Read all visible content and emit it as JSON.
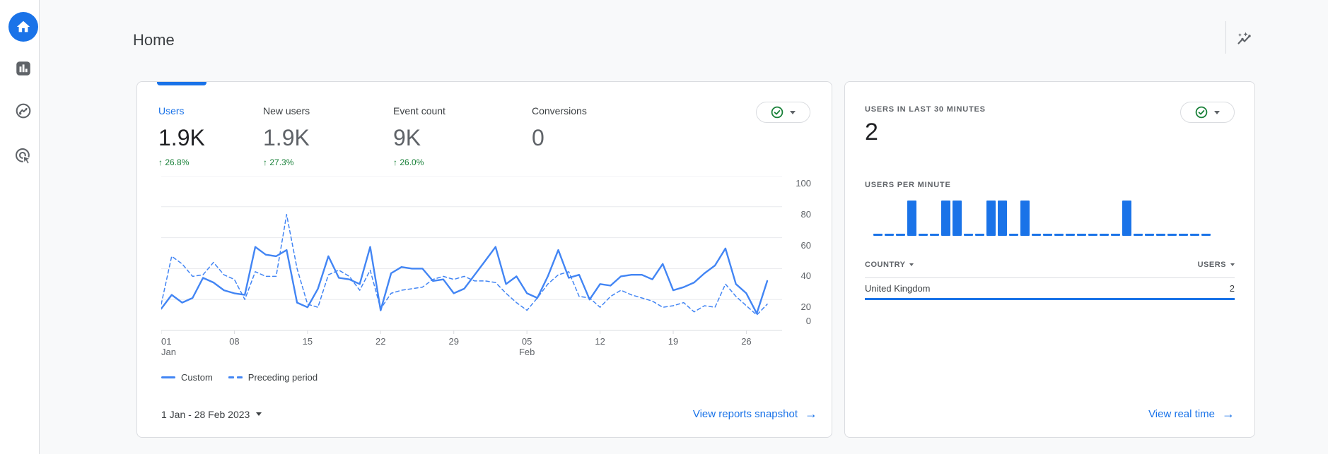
{
  "header": {
    "title": "Home"
  },
  "sidebar": {
    "items": [
      "home",
      "reports",
      "explore",
      "advertising"
    ]
  },
  "overview_card": {
    "metrics": [
      {
        "label": "Users",
        "value": "1.9K",
        "delta": "26.8%",
        "direction": "up",
        "selected": true
      },
      {
        "label": "New users",
        "value": "1.9K",
        "delta": "27.3%",
        "direction": "up",
        "selected": false
      },
      {
        "label": "Event count",
        "value": "9K",
        "delta": "26.0%",
        "direction": "up",
        "selected": false
      },
      {
        "label": "Conversions",
        "value": "0",
        "delta": null,
        "selected": false
      }
    ],
    "legend": [
      {
        "label": "Custom",
        "style": "solid"
      },
      {
        "label": "Preceding period",
        "style": "dashed"
      }
    ],
    "date_range": "1 Jan - 28 Feb 2023",
    "link_label": "View reports snapshot"
  },
  "realtime_card": {
    "title": "USERS IN LAST 30 MINUTES",
    "value": "2",
    "chart_label": "USERS PER MINUTE",
    "table": {
      "columns": [
        "COUNTRY",
        "USERS"
      ],
      "rows": [
        {
          "dimension": "United Kingdom",
          "value": "2"
        }
      ]
    },
    "link_label": "View real time"
  },
  "chart_data": [
    {
      "type": "line",
      "title": "Users over time (1 Jan - 28 Feb 2023, daily)",
      "ylim": [
        0,
        100
      ],
      "yticks": [
        0,
        20,
        40,
        60,
        80,
        100
      ],
      "grid": true,
      "legend_position": "bottom",
      "x_start": "1 Jan 2023",
      "x_end": "28 Feb 2023",
      "x_tick_days": [
        1,
        8,
        15,
        22,
        29,
        36,
        43,
        50,
        57
      ],
      "x_tick_labels": [
        {
          "day": "01",
          "month": "Jan"
        },
        {
          "day": "08",
          "month": ""
        },
        {
          "day": "15",
          "month": ""
        },
        {
          "day": "22",
          "month": ""
        },
        {
          "day": "29",
          "month": ""
        },
        {
          "day": "05",
          "month": "Feb"
        },
        {
          "day": "12",
          "month": ""
        },
        {
          "day": "19",
          "month": ""
        },
        {
          "day": "26",
          "month": ""
        }
      ],
      "series": [
        {
          "name": "Custom",
          "style": "solid",
          "values": [
            14,
            23,
            18,
            21,
            34,
            31,
            26,
            24,
            23,
            54,
            49,
            48,
            52,
            18,
            15,
            27,
            48,
            34,
            33,
            30,
            54,
            13,
            37,
            41,
            40,
            40,
            32,
            33,
            24,
            27,
            36,
            45,
            54,
            30,
            35,
            24,
            21,
            35,
            52,
            34,
            36,
            20,
            30,
            29,
            35,
            36,
            36,
            33,
            43,
            26,
            28,
            31,
            37,
            42,
            53,
            30,
            24,
            11,
            32
          ]
        },
        {
          "name": "Preceding period",
          "style": "dashed",
          "values": [
            17,
            48,
            43,
            35,
            36,
            44,
            36,
            33,
            20,
            38,
            35,
            35,
            75,
            40,
            17,
            15,
            36,
            39,
            35,
            26,
            39,
            14,
            24,
            26,
            27,
            28,
            33,
            35,
            33,
            35,
            32,
            32,
            31,
            24,
            18,
            13,
            21,
            30,
            36,
            38,
            22,
            21,
            15,
            22,
            26,
            23,
            21,
            19,
            15,
            16,
            18,
            12,
            16,
            15,
            30,
            22,
            16,
            10,
            17
          ]
        }
      ]
    },
    {
      "type": "bar",
      "title": "Users per minute (last 30 minutes, one bar per minute)",
      "values": [
        0,
        0,
        0,
        1,
        0,
        0,
        1,
        1,
        0,
        0,
        1,
        1,
        0,
        1,
        0,
        0,
        0,
        0,
        0,
        0,
        0,
        0,
        1,
        0,
        0,
        0,
        0,
        0,
        0,
        0
      ]
    }
  ],
  "colors": {
    "accent_blue": "#1a73e8",
    "chart_blue": "#4285f4",
    "positive_green": "#188038",
    "text_dark": "#202124",
    "text_medium": "#3c4043",
    "text_gray": "#5f6368",
    "border": "#dadce0",
    "gridline": "#e8eaed",
    "background": "#f8f9fa"
  }
}
